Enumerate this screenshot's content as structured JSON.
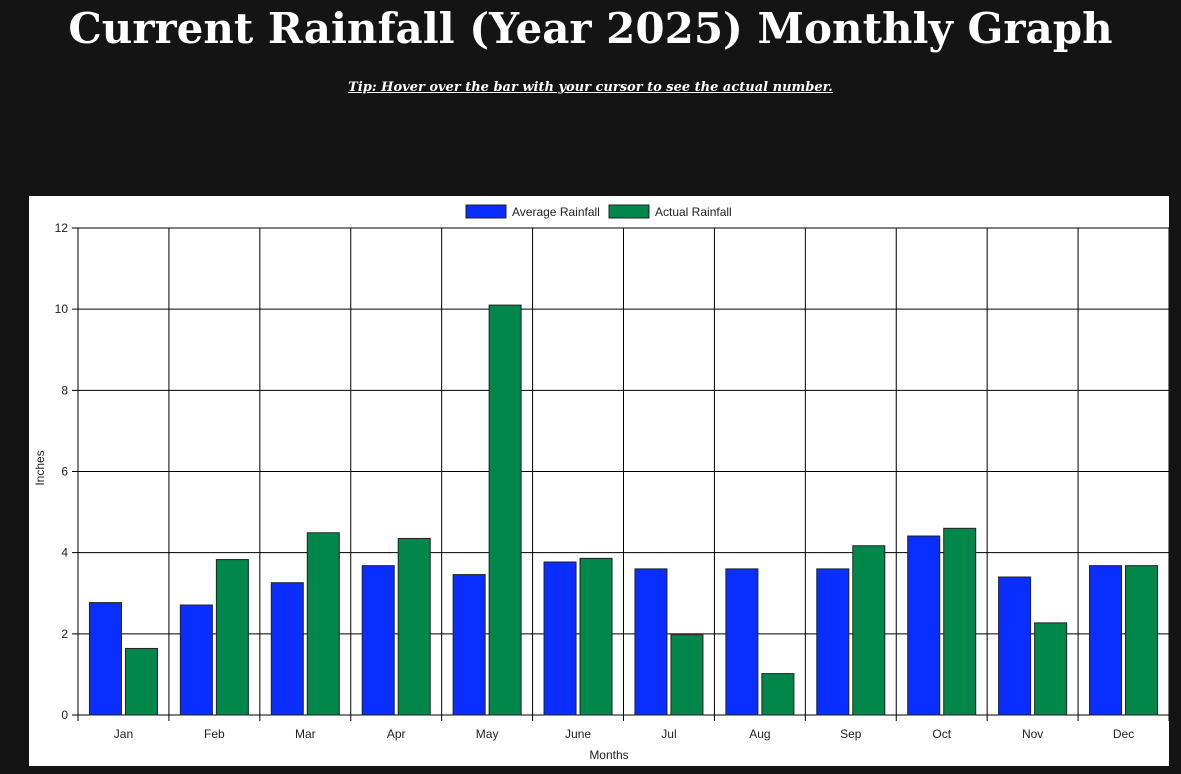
{
  "page": {
    "title": "Current Rainfall (Year 2025) Monthly Graph",
    "tip": "Tip: Hover over the bar with your cursor to see the actual number."
  },
  "chart_data": {
    "type": "bar",
    "xlabel": "Months",
    "ylabel": "Inches",
    "ylim": [
      0,
      12
    ],
    "yticks": [
      0,
      2,
      4,
      6,
      8,
      10,
      12
    ],
    "grid": true,
    "legend_position": "top-center",
    "categories": [
      "Jan",
      "Feb",
      "Mar",
      "Apr",
      "May",
      "June",
      "Jul",
      "Aug",
      "Sep",
      "Oct",
      "Nov",
      "Dec"
    ],
    "series": [
      {
        "name": "Average Rainfall",
        "color": "#0a2eff",
        "values": [
          2.77,
          2.71,
          3.26,
          3.68,
          3.46,
          3.77,
          3.6,
          3.6,
          3.6,
          4.41,
          3.4,
          3.68
        ]
      },
      {
        "name": "Actual Rainfall",
        "color": "#02874a",
        "values": [
          1.64,
          3.83,
          4.49,
          4.35,
          10.1,
          3.86,
          1.98,
          1.02,
          4.17,
          4.6,
          2.27,
          3.68
        ]
      }
    ]
  }
}
